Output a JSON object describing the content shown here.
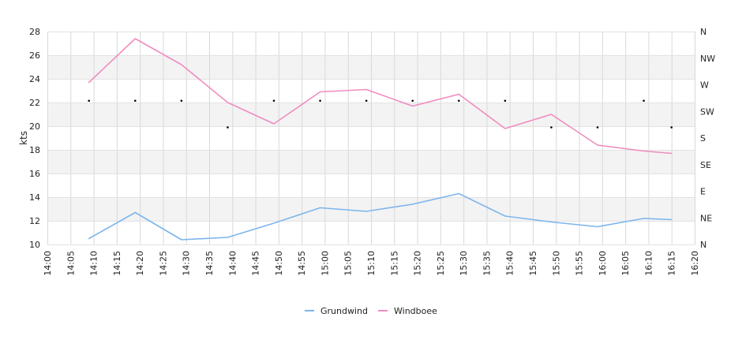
{
  "chart_data": {
    "type": "line",
    "title": "",
    "xlabel": "",
    "ylabel": "kts",
    "ylim": [
      10,
      28
    ],
    "y_ticks": [
      10,
      12,
      14,
      16,
      18,
      20,
      22,
      24,
      26,
      28
    ],
    "x_range": [
      "14:00",
      "16:20"
    ],
    "x_ticks": [
      "14:00",
      "14:05",
      "14:10",
      "14:15",
      "14:20",
      "14:25",
      "14:30",
      "14:35",
      "14:40",
      "14:45",
      "14:50",
      "14:55",
      "15:00",
      "15:05",
      "15:10",
      "15:15",
      "15:20",
      "15:25",
      "15:30",
      "15:35",
      "15:40",
      "15:45",
      "15:50",
      "15:55",
      "16:00",
      "16:05",
      "16:10",
      "16:15",
      "16:20"
    ],
    "y2_ticks": [
      "N",
      "NE",
      "E",
      "SE",
      "S",
      "SW",
      "W",
      "NW",
      "N"
    ],
    "grid": true,
    "legend": "bottom",
    "x": [
      "14:09",
      "14:19",
      "14:29",
      "14:39",
      "14:49",
      "14:59",
      "15:09",
      "15:19",
      "15:29",
      "15:39",
      "15:49",
      "15:59",
      "16:09",
      "16:15"
    ],
    "series": [
      {
        "name": "Grundwind",
        "color": "#7cb5ec",
        "values": [
          10.5,
          12.7,
          10.4,
          10.6,
          11.8,
          13.1,
          12.8,
          13.4,
          14.3,
          12.4,
          11.9,
          11.5,
          12.2,
          12.1
        ]
      },
      {
        "name": "Windboee",
        "color": "#f08cbf",
        "values": [
          23.7,
          27.4,
          25.2,
          22.0,
          20.2,
          22.9,
          23.1,
          21.7,
          22.7,
          19.8,
          21.0,
          18.4,
          17.9,
          17.7
        ]
      }
    ],
    "wind_direction": {
      "color": "#000000",
      "values": [
        "SW",
        "SW",
        "SW",
        "S",
        "SW",
        "SW",
        "SW",
        "SW",
        "SW",
        "SW",
        "S",
        "S",
        "SW",
        "S"
      ]
    }
  }
}
